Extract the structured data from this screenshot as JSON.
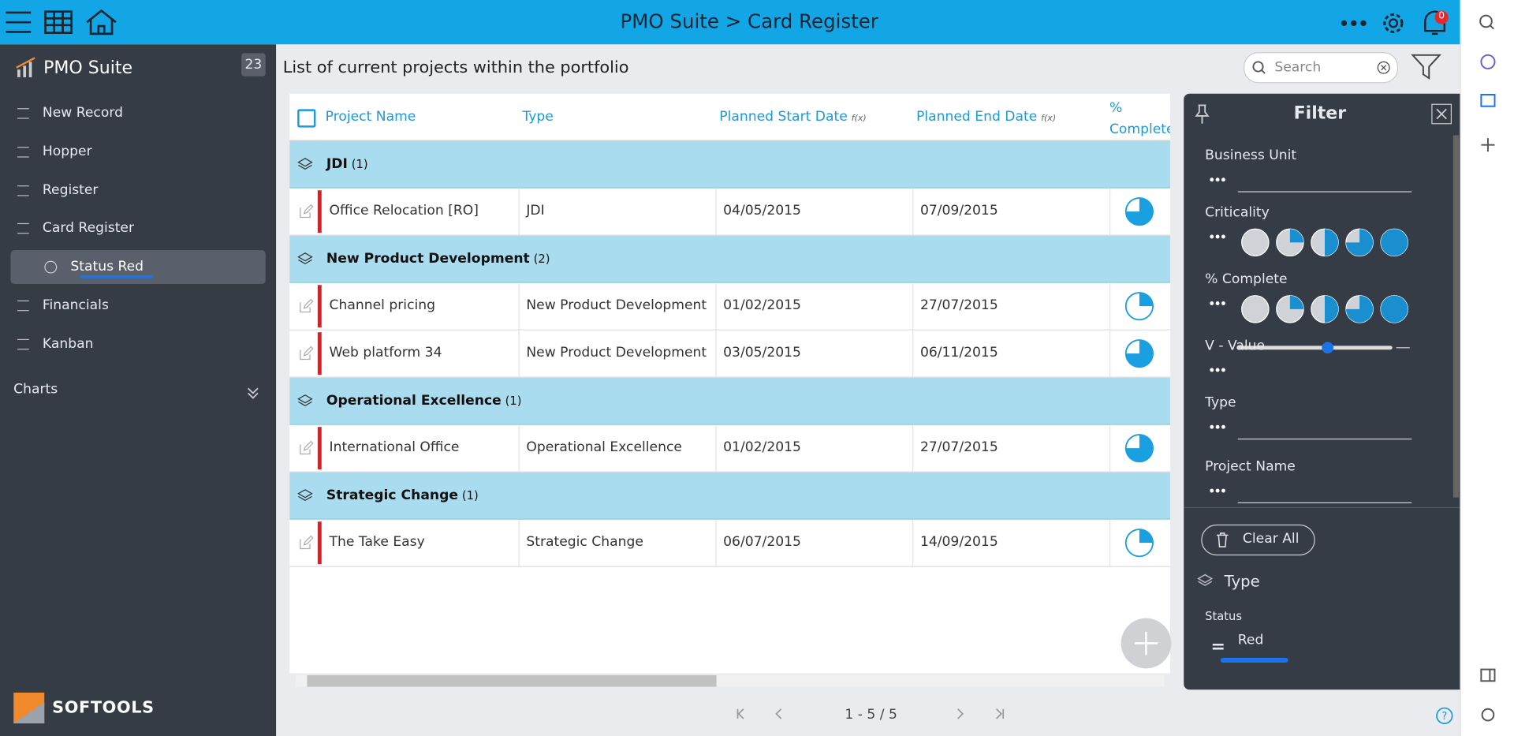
{
  "header": {
    "title": "PMO Suite > Card Register",
    "notifications": "0"
  },
  "sidebar": {
    "app_name": "PMO Suite",
    "badge": "23",
    "items": [
      "New Record",
      "Hopper",
      "Register",
      "Card Register",
      "Status Red",
      "Financials",
      "Kanban"
    ],
    "section": "Charts",
    "brand": "SOFTOOLS"
  },
  "main": {
    "title": "List of current projects within the portfolio",
    "search_placeholder": "Search",
    "columns": [
      "Project Name",
      "Type",
      "Planned Start Date",
      "Planned End Date",
      "% Complete"
    ],
    "formula_marker": "f(x)",
    "groups": [
      {
        "name": "JDI",
        "count": "(1)",
        "rows": [
          {
            "cells": [
              "Office Relocation [RO]",
              "JDI",
              "04/05/2015",
              "07/09/2015"
            ],
            "percent_complete": 75
          }
        ]
      },
      {
        "name": "New Product Development",
        "count": "(2)",
        "rows": [
          {
            "cells": [
              "Channel pricing",
              "New Product Development",
              "01/02/2015",
              "27/07/2015"
            ],
            "percent_complete": 25
          },
          {
            "cells": [
              "Web platform 34",
              "New Product Development",
              "03/05/2015",
              "06/11/2015"
            ],
            "percent_complete": 75
          }
        ]
      },
      {
        "name": "Operational Excellence",
        "count": "(1)",
        "rows": [
          {
            "cells": [
              "International Office",
              "Operational Excellence",
              "01/02/2015",
              "27/07/2015"
            ],
            "percent_complete": 75
          }
        ]
      },
      {
        "name": "Strategic Change",
        "count": "(1)",
        "rows": [
          {
            "cells": [
              "The Take Easy",
              "Strategic Change",
              "06/07/2015",
              "14/09/2015"
            ],
            "percent_complete": 25
          }
        ]
      }
    ],
    "pagination": "1 - 5 / 5"
  },
  "filter": {
    "title": "Filter",
    "fields": [
      "Business Unit",
      "Criticality",
      "% Complete",
      "V - Value",
      "Type",
      "Project Name"
    ],
    "clear": "Clear All",
    "group_by": "Type",
    "status_label": "Status",
    "status_value": "Red"
  }
}
